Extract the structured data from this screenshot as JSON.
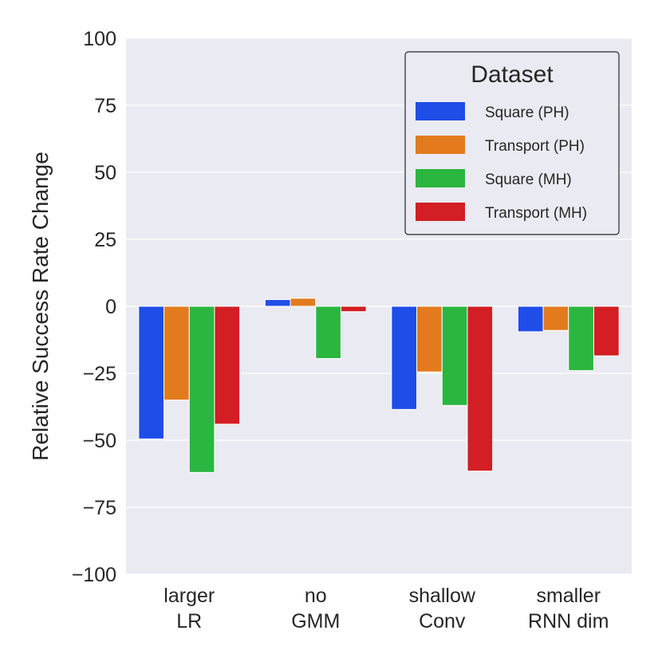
{
  "chart_data": {
    "type": "bar",
    "categories": [
      [
        "larger",
        "LR"
      ],
      [
        "no",
        "GMM"
      ],
      [
        "shallow",
        "Conv"
      ],
      [
        "smaller",
        "RNN dim"
      ]
    ],
    "series": [
      {
        "name": "Square (PH)",
        "color": "#1f4de8",
        "values": [
          -49.5,
          2.5,
          -38.5,
          -9.5
        ]
      },
      {
        "name": "Transport (PH)",
        "color": "#e37b1e",
        "values": [
          -35,
          3,
          -24.5,
          -9
        ]
      },
      {
        "name": "Square (MH)",
        "color": "#2bb640",
        "values": [
          -62,
          -19.5,
          -37,
          -24
        ]
      },
      {
        "name": "Transport (MH)",
        "color": "#d21e24",
        "values": [
          -44,
          -2,
          -61.5,
          -18.5
        ]
      }
    ],
    "title": "",
    "xlabel": "",
    "ylabel": "Relative Success Rate Change",
    "ylim": [
      -100,
      100
    ],
    "yticks": [
      100,
      75,
      50,
      25,
      0,
      -25,
      -50,
      -75,
      -100
    ],
    "ytick_labels": [
      "100",
      "75",
      "50",
      "25",
      "0",
      "−25",
      "−50",
      "−75",
      "−100"
    ],
    "grid": true,
    "legend": {
      "title": "Dataset",
      "placement": "top-right"
    },
    "background": "#eaeaf2"
  }
}
